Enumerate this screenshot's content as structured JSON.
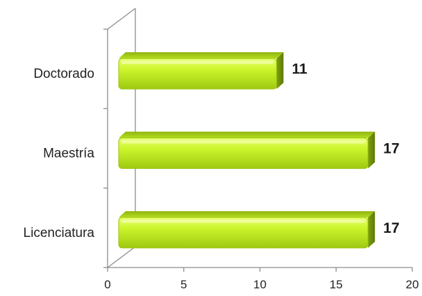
{
  "chart_data": {
    "type": "bar",
    "orientation": "horizontal",
    "style": "3d",
    "categories": [
      "Doctorado",
      "Maestría",
      "Licenciatura"
    ],
    "values": [
      11,
      17,
      17
    ],
    "data_labels": [
      "11",
      "17",
      "17"
    ],
    "xlim": [
      0,
      20
    ],
    "x_ticks": [
      0,
      5,
      10,
      15,
      20
    ],
    "x_tick_labels": [
      "0",
      "5",
      "10",
      "15",
      "20"
    ],
    "grid": false,
    "bar_color": "#c6f02a",
    "title": "",
    "xlabel": "",
    "ylabel": ""
  }
}
